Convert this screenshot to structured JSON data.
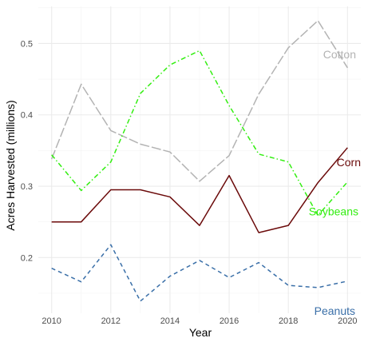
{
  "chart_data": {
    "type": "line",
    "title": "",
    "xlabel": "Year",
    "ylabel": "Acres Harvested (millions)",
    "x": [
      2010,
      2011,
      2012,
      2013,
      2014,
      2015,
      2016,
      2017,
      2018,
      2019,
      2020
    ],
    "xticks": [
      2010,
      2012,
      2014,
      2016,
      2018,
      2020
    ],
    "xtick_labels": [
      "2010",
      "2012",
      "2014",
      "2016",
      "2018",
      "2020"
    ],
    "yticks": [
      0.2,
      0.3,
      0.4,
      0.5
    ],
    "ytick_labels": [
      "0.2",
      "0.3",
      "0.4",
      "0.5"
    ],
    "xlim": [
      2009.55,
      2020.45
    ],
    "ylim": [
      0.122,
      0.552
    ],
    "grid": true,
    "legend": "direct labels at line ends",
    "series": [
      {
        "name": "Cotton",
        "color": "#b3b3b3",
        "dash": "longdash",
        "values": [
          0.338,
          0.443,
          0.378,
          0.359,
          0.348,
          0.307,
          0.343,
          0.429,
          0.494,
          0.532,
          0.466
        ]
      },
      {
        "name": "Soybeans",
        "color": "#33ee11",
        "dash": "dotdash",
        "values": [
          0.344,
          0.294,
          0.334,
          0.43,
          0.47,
          0.49,
          0.413,
          0.345,
          0.334,
          0.259,
          0.306
        ]
      },
      {
        "name": "Corn",
        "color": "#6b0a0a",
        "dash": "solid",
        "values": [
          0.25,
          0.25,
          0.295,
          0.295,
          0.285,
          0.245,
          0.315,
          0.235,
          0.245,
          0.305,
          0.354
        ]
      },
      {
        "name": "Peanuts",
        "color": "#3a6fa8",
        "dash": "dashed",
        "values": [
          0.185,
          0.166,
          0.218,
          0.139,
          0.174,
          0.196,
          0.172,
          0.193,
          0.161,
          0.158,
          0.167
        ]
      }
    ]
  }
}
